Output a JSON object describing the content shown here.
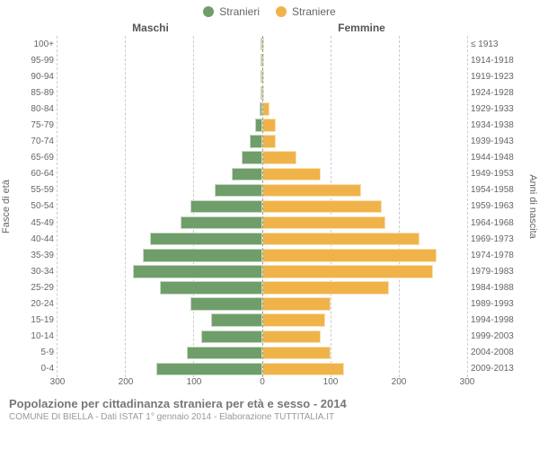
{
  "legend": {
    "male": {
      "label": "Stranieri",
      "color": "#6f9e6a"
    },
    "female": {
      "label": "Straniere",
      "color": "#f0b34a"
    }
  },
  "headers": {
    "male": "Maschi",
    "female": "Femmine"
  },
  "axis_titles": {
    "left": "Fasce di età",
    "right": "Anni di nascita"
  },
  "chart": {
    "type": "population-pyramid",
    "x_max": 300,
    "x_ticks": [
      0,
      100,
      200,
      300
    ],
    "grid_color": "#cccccc",
    "background_color": "#ffffff",
    "bar_height_pct": 80,
    "age_groups": [
      {
        "age": "100+",
        "birth": "≤ 1913",
        "male": 0,
        "female": 0
      },
      {
        "age": "95-99",
        "birth": "1914-1918",
        "male": 0,
        "female": 0
      },
      {
        "age": "90-94",
        "birth": "1919-1923",
        "male": 0,
        "female": 2
      },
      {
        "age": "85-89",
        "birth": "1924-1928",
        "male": 0,
        "female": 0
      },
      {
        "age": "80-84",
        "birth": "1929-1933",
        "male": 4,
        "female": 10
      },
      {
        "age": "75-79",
        "birth": "1934-1938",
        "male": 10,
        "female": 20
      },
      {
        "age": "70-74",
        "birth": "1939-1943",
        "male": 18,
        "female": 20
      },
      {
        "age": "65-69",
        "birth": "1944-1948",
        "male": 30,
        "female": 50
      },
      {
        "age": "60-64",
        "birth": "1949-1953",
        "male": 45,
        "female": 85
      },
      {
        "age": "55-59",
        "birth": "1954-1958",
        "male": 70,
        "female": 145
      },
      {
        "age": "50-54",
        "birth": "1959-1963",
        "male": 105,
        "female": 175
      },
      {
        "age": "45-49",
        "birth": "1964-1968",
        "male": 120,
        "female": 180
      },
      {
        "age": "40-44",
        "birth": "1969-1973",
        "male": 165,
        "female": 230
      },
      {
        "age": "35-39",
        "birth": "1974-1978",
        "male": 175,
        "female": 255
      },
      {
        "age": "30-34",
        "birth": "1979-1983",
        "male": 190,
        "female": 250
      },
      {
        "age": "25-29",
        "birth": "1984-1988",
        "male": 150,
        "female": 185
      },
      {
        "age": "20-24",
        "birth": "1989-1993",
        "male": 105,
        "female": 100
      },
      {
        "age": "15-19",
        "birth": "1994-1998",
        "male": 75,
        "female": 92
      },
      {
        "age": "10-14",
        "birth": "1999-2003",
        "male": 90,
        "female": 85
      },
      {
        "age": "5-9",
        "birth": "2004-2008",
        "male": 110,
        "female": 100
      },
      {
        "age": "0-4",
        "birth": "2009-2013",
        "male": 155,
        "female": 120
      }
    ]
  },
  "footer": {
    "title": "Popolazione per cittadinanza straniera per età e sesso - 2014",
    "subtitle": "COMUNE DI BIELLA - Dati ISTAT 1° gennaio 2014 - Elaborazione TUTTITALIA.IT"
  },
  "style": {
    "font_family": "Arial, Helvetica, sans-serif",
    "label_fontsize": 10,
    "header_fontsize": 12,
    "footer_title_fontsize": 13,
    "footer_sub_fontsize": 10,
    "label_color": "#666666",
    "footer_title_color": "#777777",
    "footer_sub_color": "#999999"
  }
}
